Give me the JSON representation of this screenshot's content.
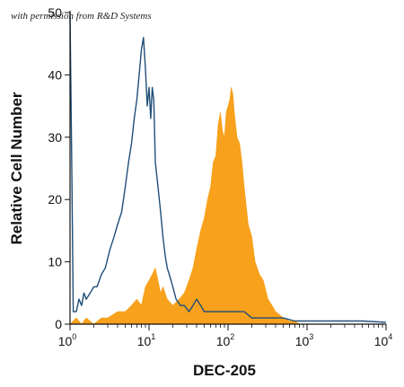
{
  "permission_note": "with permission from R&D Systems",
  "chart_data": {
    "type": "area",
    "xlabel": "DEC-205",
    "ylabel": "Relative Cell Number",
    "xscale": "log",
    "xlim": [
      1,
      10000
    ],
    "ylim": [
      0,
      50
    ],
    "x_ticks": [
      {
        "base": "10",
        "exp": "0"
      },
      {
        "base": "10",
        "exp": "1"
      },
      {
        "base": "10",
        "exp": "2"
      },
      {
        "base": "10",
        "exp": "3"
      },
      {
        "base": "10",
        "exp": "4"
      }
    ],
    "y_ticks": [
      "0",
      "10",
      "20",
      "30",
      "40",
      "50"
    ],
    "grid": false,
    "series": [
      {
        "style": "outline",
        "color": "#1f4e79",
        "x": [
          1.0,
          1.05,
          1.1,
          1.2,
          1.3,
          1.4,
          1.5,
          1.6,
          1.8,
          2.0,
          2.2,
          2.5,
          2.8,
          3.2,
          3.6,
          4.0,
          4.5,
          5.0,
          5.5,
          6.0,
          6.5,
          7.0,
          7.5,
          8.0,
          8.5,
          9.0,
          9.5,
          10.0,
          10.5,
          11.0,
          11.5,
          12.0,
          13.0,
          14.0,
          15.0,
          16.0,
          17.0,
          18.0,
          20.0,
          22.0,
          25.0,
          28.0,
          32.0,
          36.0,
          40.0,
          45.0,
          50.0,
          60.0,
          70.0,
          80.0,
          100.0,
          130.0,
          160.0,
          200.0,
          250.0,
          300.0,
          400.0,
          500.0,
          700.0,
          1000.0,
          2000.0,
          5000.0,
          10000.0
        ],
        "y": [
          50,
          26,
          2,
          2,
          4,
          3,
          5,
          4,
          5,
          6,
          6,
          8,
          9,
          12,
          14,
          16,
          18,
          22,
          26,
          29,
          33,
          36,
          40,
          44,
          46,
          41,
          35,
          38,
          33,
          38,
          36,
          26,
          22,
          18,
          14,
          11,
          9,
          8,
          6,
          4,
          3,
          3,
          2,
          3,
          4,
          3,
          2,
          2,
          2,
          2,
          2,
          2,
          2,
          1,
          1,
          1,
          1,
          1,
          0.5,
          0.5,
          0.5,
          0.5,
          0.3
        ]
      },
      {
        "style": "filled",
        "color": "#f7a11c",
        "x": [
          1.0,
          1.2,
          1.4,
          1.6,
          2.0,
          2.5,
          3.0,
          4.0,
          5.0,
          6.0,
          7.0,
          8.0,
          9.0,
          10.0,
          11.0,
          12.0,
          13.0,
          14.0,
          15.0,
          17.0,
          20.0,
          24.0,
          28.0,
          32.0,
          36.0,
          40.0,
          45.0,
          50.0,
          55.0,
          60.0,
          65.0,
          70.0,
          75.0,
          80.0,
          85.0,
          90.0,
          95.0,
          100.0,
          105.0,
          110.0,
          115.0,
          120.0,
          125.0,
          130.0,
          140.0,
          150.0,
          160.0,
          170.0,
          180.0,
          200.0,
          220.0,
          250.0,
          280.0,
          320.0,
          360.0,
          400.0,
          450.0,
          500.0,
          600.0,
          700.0,
          800.0,
          1000.0
        ],
        "y": [
          0,
          1,
          0,
          1,
          0,
          1,
          1,
          2,
          2,
          3,
          4,
          3,
          6,
          7,
          8,
          9,
          7,
          5,
          6,
          4,
          3,
          4,
          5,
          7,
          9,
          12,
          15,
          17,
          20,
          22,
          26,
          27,
          32,
          34,
          31,
          30,
          34,
          35,
          36,
          38,
          37,
          34,
          32,
          30,
          29,
          26,
          22,
          19,
          16,
          14,
          10,
          8,
          7,
          4,
          3,
          2,
          1.5,
          1,
          0.5,
          0.5,
          0,
          0
        ]
      }
    ]
  }
}
